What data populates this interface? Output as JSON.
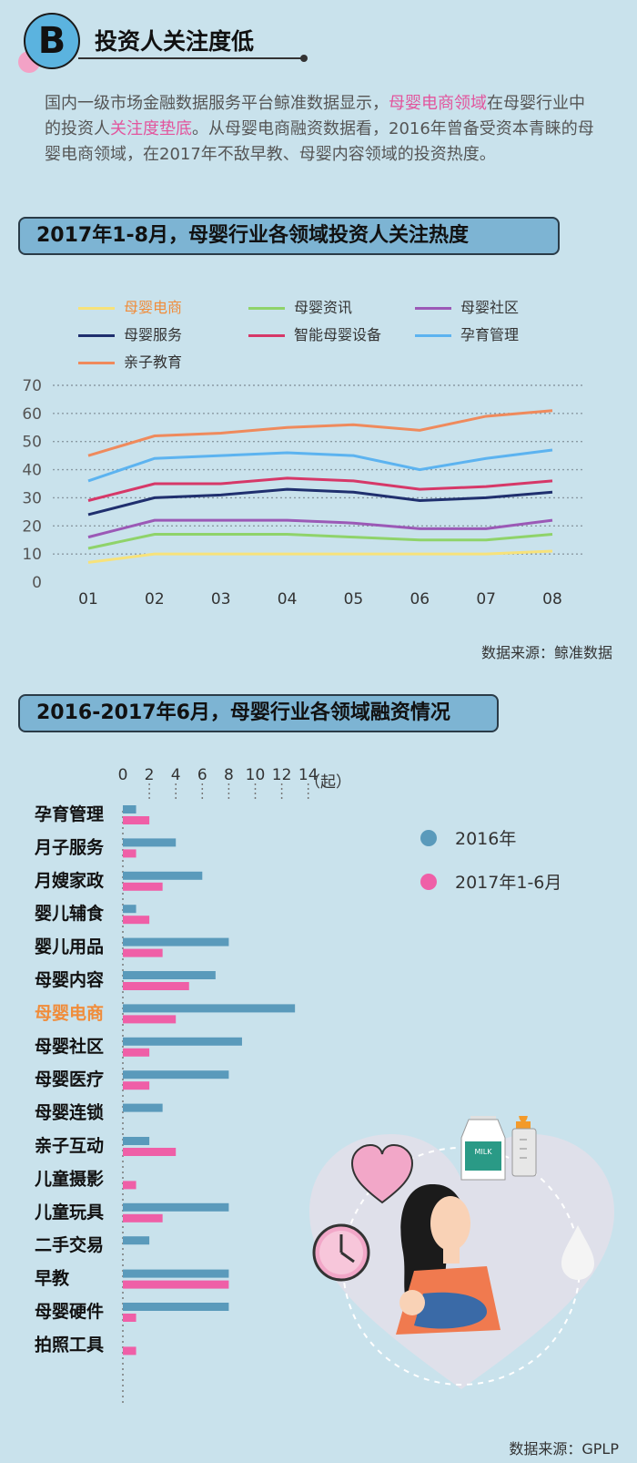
{
  "header": {
    "badge": "B",
    "title": "投资人关注度低",
    "intro_part1": "国内一级市场金融数据服务平台鲸准数据显示，",
    "intro_hl1": "母婴电商领域",
    "intro_part2": "在母婴行业中的投资人",
    "intro_hl2": "关注度垫底",
    "intro_part3": "。从母婴电商融资数据看，2016年曾备受资本青睐的母婴电商领域，在2017年不敌早教、母婴内容领域的投资热度。"
  },
  "colors": {
    "highlight": "#e2559d",
    "orange_label": "#f08c3a",
    "bar_2016": "#5a9abb",
    "bar_2017": "#ef5fa7"
  },
  "line_chart": {
    "banner": "2017年1-8月，母婴行业各领域投资人关注热度",
    "source": "数据来源：鲸准数据"
  },
  "bar_chart": {
    "banner": "2016-2017年6月，母婴行业各领域融资情况",
    "unit": "（起）",
    "source": "数据来源：GPLP"
  },
  "chart_data": [
    {
      "type": "line",
      "title": "2017年1-8月，母婴行业各领域投资人关注热度",
      "x": [
        "01",
        "02",
        "03",
        "04",
        "05",
        "06",
        "07",
        "08"
      ],
      "yticks": [
        0,
        10,
        20,
        30,
        40,
        50,
        60,
        70
      ],
      "ylim": [
        0,
        70
      ],
      "grid": true,
      "series": [
        {
          "name": "母婴电商",
          "color": "#f7e27a",
          "values": [
            7,
            10,
            10,
            10,
            10,
            10,
            10,
            11
          ]
        },
        {
          "name": "母婴资讯",
          "color": "#8fd36a",
          "values": [
            12,
            17,
            17,
            17,
            16,
            15,
            15,
            17
          ]
        },
        {
          "name": "母婴社区",
          "color": "#9b59b6",
          "values": [
            16,
            22,
            22,
            22,
            21,
            19,
            19,
            22
          ]
        },
        {
          "name": "母婴服务",
          "color": "#1f2f6e",
          "values": [
            24,
            30,
            31,
            33,
            32,
            29,
            30,
            32
          ]
        },
        {
          "name": "智能母婴设备",
          "color": "#d63868",
          "values": [
            29,
            35,
            35,
            37,
            36,
            33,
            34,
            36
          ]
        },
        {
          "name": "孕育管理",
          "color": "#5cb3f0",
          "values": [
            36,
            44,
            45,
            46,
            45,
            40,
            44,
            47
          ]
        },
        {
          "name": "亲子教育",
          "color": "#ef8a5c",
          "values": [
            45,
            52,
            53,
            55,
            56,
            54,
            59,
            61
          ]
        }
      ]
    },
    {
      "type": "bar",
      "title": "2016-2017年6月，母婴行业各领域融资情况",
      "xticks": [
        0,
        2,
        4,
        6,
        8,
        10,
        12,
        14
      ],
      "xlim": [
        0,
        14
      ],
      "categories": [
        "孕育管理",
        "月子服务",
        "月嫂家政",
        "婴儿辅食",
        "婴儿用品",
        "母婴内容",
        "母婴电商",
        "母婴社区",
        "母婴医疗",
        "母婴连锁",
        "亲子互动",
        "儿童摄影",
        "儿童玩具",
        "二手交易",
        "早教",
        "母婴硬件",
        "拍照工具"
      ],
      "series": [
        {
          "name": "2016年",
          "color": "#5a9abb",
          "values": [
            1,
            4,
            6,
            1,
            8,
            7,
            13,
            9,
            8,
            3,
            2,
            0,
            8,
            2,
            8,
            8,
            0
          ]
        },
        {
          "name": "2017年1-6月",
          "color": "#ef5fa7",
          "values": [
            2,
            1,
            3,
            2,
            3,
            5,
            4,
            2,
            2,
            0,
            4,
            1,
            3,
            0,
            8,
            1,
            1
          ]
        }
      ]
    }
  ]
}
